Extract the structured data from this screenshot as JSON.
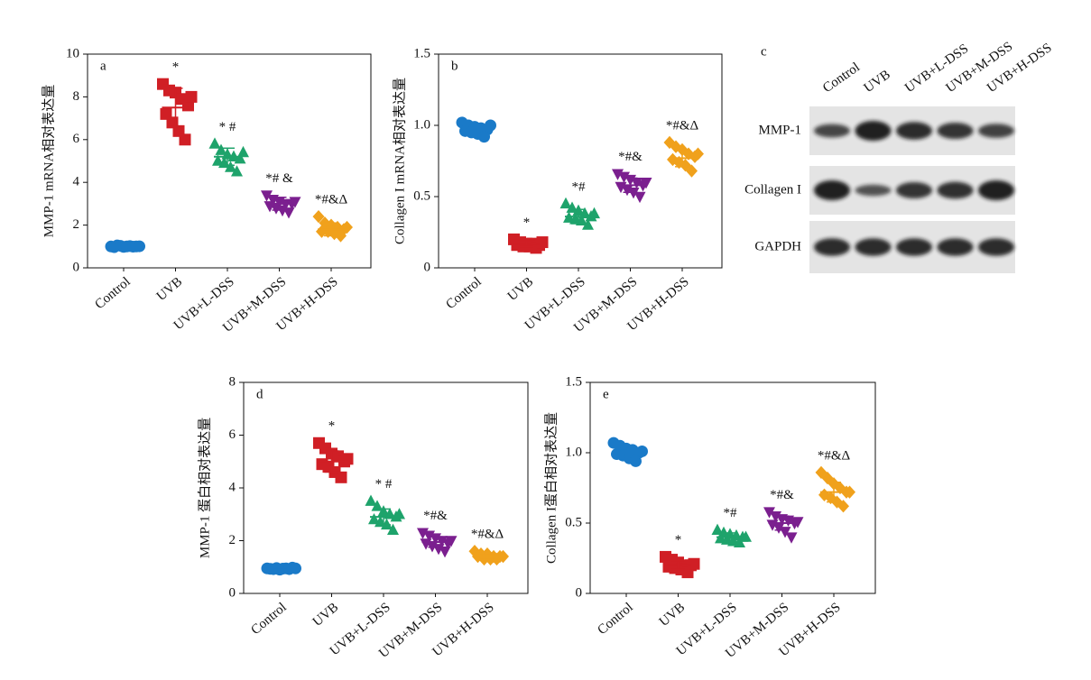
{
  "chart_data": [
    {
      "type": "dot",
      "panel": "a",
      "ylabel": "MMP-1 mRNA相对表达量",
      "categories": [
        "Control",
        "UVB",
        "UVB+L-DSS",
        "UVB+M-DSS",
        "UVB+H-DSS"
      ],
      "colors": [
        "#1a7ac8",
        "#d01f25",
        "#1ea36b",
        "#7b1f8f",
        "#f0a11c"
      ],
      "markers": [
        "circle",
        "square",
        "triangle",
        "triangle-down",
        "diamond"
      ],
      "points": [
        [
          1.0,
          1.05,
          0.98,
          1.02,
          1.0,
          0.97,
          1.03,
          1.0,
          0.99,
          1.01
        ],
        [
          8.6,
          8.3,
          8.2,
          7.9,
          7.6,
          7.2,
          6.8,
          6.4,
          6.0,
          8.0
        ],
        [
          5.8,
          5.5,
          5.3,
          5.2,
          5.1,
          5.0,
          4.9,
          4.7,
          4.5,
          5.4
        ],
        [
          3.4,
          3.2,
          3.1,
          3.0,
          3.0,
          2.9,
          2.8,
          2.7,
          2.6,
          3.1
        ],
        [
          2.4,
          2.1,
          2.0,
          1.9,
          1.8,
          1.7,
          1.7,
          1.6,
          1.5,
          1.9
        ]
      ],
      "mean": [
        1.0,
        7.5,
        5.2,
        3.0,
        1.8
      ],
      "sd": [
        0.05,
        0.9,
        0.4,
        0.3,
        0.3
      ],
      "annotations": [
        null,
        "*",
        "* #",
        "*# &",
        "*#&Δ"
      ],
      "ylim": [
        0,
        10
      ],
      "yticks": [
        0,
        2,
        4,
        6,
        8,
        10
      ]
    },
    {
      "type": "dot",
      "panel": "b",
      "ylabel": "Collagen I mRNA相对表达量",
      "categories": [
        "Control",
        "UVB",
        "UVB+L-DSS",
        "UVB+M-DSS",
        "UVB+H-DSS"
      ],
      "colors": [
        "#1a7ac8",
        "#d01f25",
        "#1ea36b",
        "#7b1f8f",
        "#f0a11c"
      ],
      "markers": [
        "circle",
        "square",
        "triangle",
        "triangle-down",
        "diamond"
      ],
      "points": [
        [
          1.02,
          1.0,
          0.99,
          0.98,
          0.97,
          0.96,
          0.95,
          0.94,
          0.92,
          1.0
        ],
        [
          0.2,
          0.18,
          0.17,
          0.17,
          0.16,
          0.16,
          0.15,
          0.15,
          0.14,
          0.18
        ],
        [
          0.45,
          0.42,
          0.4,
          0.38,
          0.36,
          0.35,
          0.34,
          0.33,
          0.3,
          0.38
        ],
        [
          0.66,
          0.64,
          0.62,
          0.6,
          0.58,
          0.57,
          0.55,
          0.53,
          0.5,
          0.6
        ],
        [
          0.88,
          0.85,
          0.83,
          0.8,
          0.78,
          0.76,
          0.74,
          0.72,
          0.68,
          0.8
        ]
      ],
      "mean": [
        0.97,
        0.17,
        0.36,
        0.58,
        0.77
      ],
      "sd": [
        0.03,
        0.02,
        0.05,
        0.05,
        0.06
      ],
      "annotations": [
        null,
        "*",
        "*#",
        "*#&",
        "*#&Δ"
      ],
      "ylim": [
        0,
        1.5
      ],
      "yticks": [
        0,
        0.5,
        {
          "value": 1,
          "label": "1.0"
        },
        1.5
      ]
    },
    {
      "type": "blot",
      "panel": "c",
      "lanes": [
        "Control",
        "UVB",
        "UVB+L-DSS",
        "UVB+M-DSS",
        "UVB+H-DSS"
      ],
      "rows": [
        "MMP-1",
        "Collagen I",
        "GAPDH"
      ]
    },
    {
      "type": "dot",
      "panel": "d",
      "ylabel": "MMP-1 蛋白相对表达量",
      "categories": [
        "Control",
        "UVB",
        "UVB+L-DSS",
        "UVB+M-DSS",
        "UVB+H-DSS"
      ],
      "colors": [
        "#1a7ac8",
        "#d01f25",
        "#1ea36b",
        "#7b1f8f",
        "#f0a11c"
      ],
      "markers": [
        "circle",
        "square",
        "triangle",
        "triangle-down",
        "diamond"
      ],
      "points": [
        [
          0.95,
          0.92,
          0.9,
          0.95,
          0.98,
          0.93,
          0.96,
          0.94,
          0.92,
          0.95
        ],
        [
          5.7,
          5.5,
          5.3,
          5.2,
          5.0,
          4.9,
          4.8,
          4.6,
          4.4,
          5.1
        ],
        [
          3.5,
          3.3,
          3.1,
          3.0,
          2.9,
          2.8,
          2.7,
          2.6,
          2.4,
          3.0
        ],
        [
          2.3,
          2.2,
          2.1,
          2.0,
          1.9,
          1.9,
          1.8,
          1.7,
          1.6,
          2.0
        ],
        [
          1.6,
          1.5,
          1.5,
          1.4,
          1.4,
          1.4,
          1.3,
          1.3,
          1.3,
          1.4
        ]
      ],
      "mean": [
        0.94,
        5.0,
        2.9,
        1.95,
        1.4
      ],
      "sd": [
        0.03,
        0.4,
        0.3,
        0.2,
        0.1
      ],
      "annotations": [
        null,
        "*",
        "* #",
        "*#&",
        "*#&Δ"
      ],
      "ylim": [
        0,
        8
      ],
      "yticks": [
        0,
        2,
        4,
        6,
        8
      ]
    },
    {
      "type": "dot",
      "panel": "e",
      "ylabel": "Collagen I蛋白相对表达量",
      "categories": [
        "Control",
        "UVB",
        "UVB+L-DSS",
        "UVB+M-DSS",
        "UVB+H-DSS"
      ],
      "colors": [
        "#1a7ac8",
        "#d01f25",
        "#1ea36b",
        "#7b1f8f",
        "#f0a11c"
      ],
      "markers": [
        "circle",
        "square",
        "triangle",
        "triangle-down",
        "diamond"
      ],
      "points": [
        [
          1.07,
          1.05,
          1.03,
          1.02,
          1.0,
          0.99,
          0.98,
          0.96,
          0.94,
          1.01
        ],
        [
          0.26,
          0.24,
          0.22,
          0.2,
          0.2,
          0.19,
          0.18,
          0.17,
          0.15,
          0.21
        ],
        [
          0.45,
          0.43,
          0.42,
          0.41,
          0.4,
          0.39,
          0.38,
          0.37,
          0.36,
          0.4
        ],
        [
          0.58,
          0.55,
          0.53,
          0.52,
          0.5,
          0.49,
          0.47,
          0.44,
          0.4,
          0.51
        ],
        [
          0.86,
          0.82,
          0.78,
          0.75,
          0.72,
          0.7,
          0.68,
          0.65,
          0.62,
          0.72
        ]
      ],
      "mean": [
        1.0,
        0.2,
        0.4,
        0.5,
        0.72
      ],
      "sd": [
        0.03,
        0.03,
        0.03,
        0.05,
        0.07
      ],
      "annotations": [
        null,
        "*",
        "*#",
        "*#&",
        "*#&Δ"
      ],
      "ylim": [
        0,
        1.5
      ],
      "yticks": [
        0,
        0.5,
        {
          "value": 1,
          "label": "1.0"
        },
        1.5
      ]
    }
  ]
}
